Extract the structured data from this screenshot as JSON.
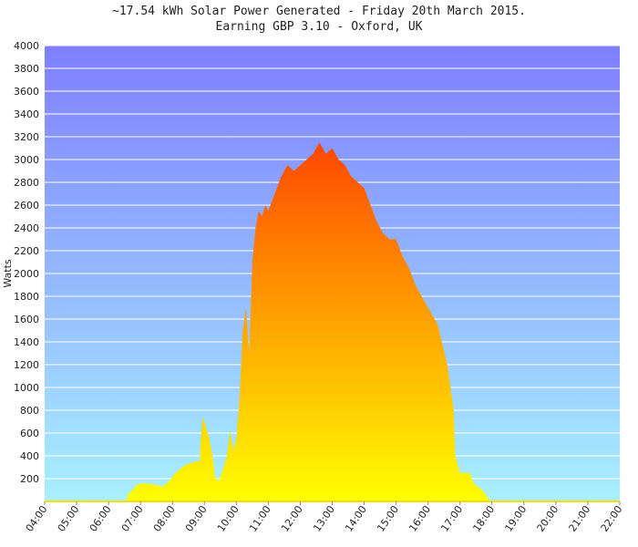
{
  "chart_data": {
    "type": "area",
    "title": "~17.54 kWh Solar Power Generated - Friday 20th March 2015.",
    "subtitle": "Earning GBP 3.10 - Oxford, UK",
    "y_label": "Watts",
    "x": [
      6.55,
      6.6,
      6.75,
      6.9,
      7.1,
      7.4,
      7.7,
      7.9,
      8.1,
      8.3,
      8.5,
      8.7,
      8.85,
      8.9,
      8.95,
      9.05,
      9.15,
      9.25,
      9.35,
      9.45,
      9.6,
      9.7,
      9.8,
      9.9,
      10.0,
      10.1,
      10.2,
      10.3,
      10.4,
      10.5,
      10.6,
      10.7,
      10.8,
      10.9,
      11.0,
      11.2,
      11.4,
      11.6,
      11.8,
      12.0,
      12.2,
      12.4,
      12.6,
      12.8,
      13.0,
      13.2,
      13.4,
      13.6,
      13.8,
      14.0,
      14.2,
      14.4,
      14.6,
      14.8,
      15.0,
      15.2,
      15.4,
      15.6,
      15.8,
      16.0,
      16.3,
      16.6,
      16.8,
      16.85,
      17.0,
      17.3,
      17.45,
      17.7,
      17.95
    ],
    "values": [
      0,
      60,
      100,
      150,
      160,
      150,
      130,
      180,
      250,
      300,
      330,
      350,
      350,
      600,
      740,
      650,
      550,
      400,
      200,
      180,
      300,
      400,
      620,
      450,
      550,
      900,
      1500,
      1700,
      1300,
      2100,
      2400,
      2550,
      2500,
      2600,
      2550,
      2700,
      2850,
      2950,
      2900,
      2950,
      3000,
      3050,
      3150,
      3050,
      3100,
      3000,
      2950,
      2850,
      2800,
      2750,
      2600,
      2450,
      2350,
      2300,
      2300,
      2150,
      2050,
      1900,
      1800,
      1700,
      1550,
      1200,
      800,
      400,
      250,
      250,
      150,
      100,
      0
    ],
    "fill_top": "#ff4400",
    "fill_bottom": "#ffff00",
    "bg_top": "#7f7fff",
    "bg_bottom": "#a8f0ff",
    "xlim": [
      4,
      22
    ],
    "xticks": [
      {
        "value": 4,
        "label": "04:00"
      },
      {
        "value": 5,
        "label": "05:00"
      },
      {
        "value": 6,
        "label": "06:00"
      },
      {
        "value": 7,
        "label": "07:00"
      },
      {
        "value": 8,
        "label": "08:00"
      },
      {
        "value": 9,
        "label": "09:00"
      },
      {
        "value": 10,
        "label": "10:00"
      },
      {
        "value": 11,
        "label": "11:00"
      },
      {
        "value": 12,
        "label": "12:00"
      },
      {
        "value": 13,
        "label": "13:00"
      },
      {
        "value": 14,
        "label": "14:00"
      },
      {
        "value": 15,
        "label": "15:00"
      },
      {
        "value": 16,
        "label": "16:00"
      },
      {
        "value": 17,
        "label": "17:00"
      },
      {
        "value": 18,
        "label": "18:00"
      },
      {
        "value": 19,
        "label": "19:00"
      },
      {
        "value": 20,
        "label": "20:00"
      },
      {
        "value": 21,
        "label": "21:00"
      },
      {
        "value": 22,
        "label": "22:00"
      }
    ],
    "ylim": [
      0,
      4000
    ],
    "yticks": [
      200,
      400,
      600,
      800,
      1000,
      1200,
      1400,
      1600,
      1800,
      2000,
      2200,
      2400,
      2600,
      2800,
      3000,
      3200,
      3400,
      3600,
      3800,
      4000
    ],
    "grid": true
  }
}
